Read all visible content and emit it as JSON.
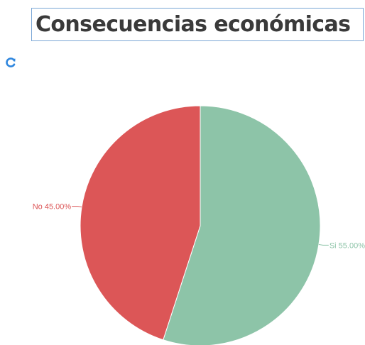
{
  "title": "Consecuencias económicas",
  "toolbar": {
    "refresh_icon": "refresh-icon",
    "accent": "#2e86de"
  },
  "chart_data": {
    "type": "pie",
    "title": "Consecuencias económicas",
    "slices": [
      {
        "label": "Si",
        "value": 55.0,
        "display": "Si 55.00%",
        "color": "#8dc4a8"
      },
      {
        "label": "No",
        "value": 45.0,
        "display": "No 45.00%",
        "color": "#dc5657"
      }
    ],
    "start_angle_deg": 0,
    "direction": "clockwise",
    "legend": "none"
  }
}
